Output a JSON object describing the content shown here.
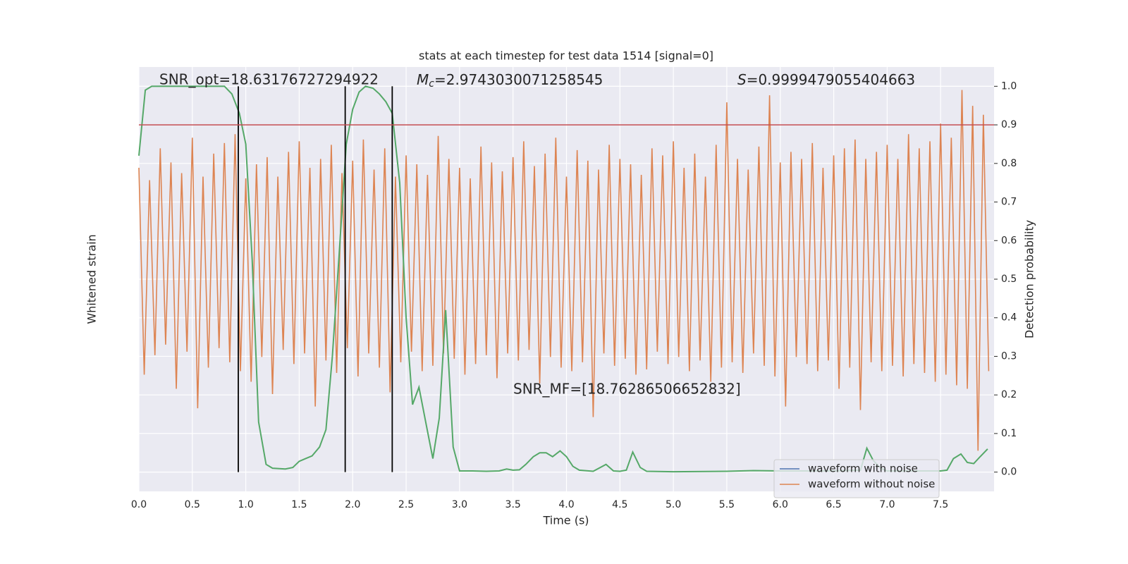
{
  "chart_data": {
    "type": "line",
    "title": "stats at each timestep for test data 1514 [signal=0]",
    "xlabel": "Time (s)",
    "ylabel": "Whitened strain",
    "y2label": "Detection probability",
    "grid": true,
    "legend": "lower right",
    "xlim": [
      0,
      8.0
    ],
    "ylim": [
      -1.28,
      1.12
    ],
    "y2lim": [
      -0.05,
      1.05
    ],
    "xticks": [
      {
        "value": 0,
        "label": "0.0"
      },
      {
        "value": 0.5,
        "label": "0.5"
      },
      {
        "value": 1,
        "label": "1.0"
      },
      {
        "value": 1.5,
        "label": "1.5"
      },
      {
        "value": 2,
        "label": "2.0"
      },
      {
        "value": 2.5,
        "label": "2.5"
      },
      {
        "value": 3,
        "label": "3.0"
      },
      {
        "value": 3.5,
        "label": "3.5"
      },
      {
        "value": 4,
        "label": "4.0"
      },
      {
        "value": 4.5,
        "label": "4.5"
      },
      {
        "value": 5,
        "label": "5.0"
      },
      {
        "value": 5.5,
        "label": "5.5"
      },
      {
        "value": 6,
        "label": "6.0"
      },
      {
        "value": 6.5,
        "label": "6.5"
      },
      {
        "value": 7,
        "label": "7.0"
      },
      {
        "value": 7.5,
        "label": "7.5"
      }
    ],
    "y2ticks": [
      {
        "value": 0,
        "label": "0.0"
      },
      {
        "value": 0.1,
        "label": "0.1"
      },
      {
        "value": 0.2,
        "label": "0.2"
      },
      {
        "value": 0.3,
        "label": "0.3"
      },
      {
        "value": 0.4,
        "label": "0.4"
      },
      {
        "value": 0.5,
        "label": "0.5"
      },
      {
        "value": 0.6,
        "label": "0.6"
      },
      {
        "value": 0.7,
        "label": "0.7"
      },
      {
        "value": 0.8,
        "label": "0.8"
      },
      {
        "value": 0.9,
        "label": "0.9"
      },
      {
        "value": 1,
        "label": "1.0"
      }
    ],
    "series": [
      {
        "name": "waveform with noise",
        "color": "#4c72b0"
      },
      {
        "name": "waveform without noise",
        "color": "#dd8452",
        "x": [
          0,
          0.05,
          0.1,
          0.15,
          0.2,
          0.25,
          0.3,
          0.35,
          0.4,
          0.45,
          0.5,
          0.55,
          0.6,
          0.65,
          0.7,
          0.75,
          0.8,
          0.85,
          0.9,
          0.95,
          1,
          1.05,
          1.1,
          1.15,
          1.2,
          1.25,
          1.3,
          1.35,
          1.4,
          1.45,
          1.5,
          1.55,
          1.6,
          1.65,
          1.7,
          1.75,
          1.8,
          1.85,
          1.9,
          1.95,
          2,
          2.05,
          2.1,
          2.15,
          2.2,
          2.25,
          2.3,
          2.35,
          2.4,
          2.45,
          2.5,
          2.55,
          2.6,
          2.65,
          2.7,
          2.75,
          2.8,
          2.85,
          2.9,
          2.95,
          3,
          3.05,
          3.1,
          3.15,
          3.2,
          3.25,
          3.3,
          3.35,
          3.4,
          3.45,
          3.5,
          3.55,
          3.6,
          3.65,
          3.7,
          3.75,
          3.8,
          3.85,
          3.9,
          3.95,
          4,
          4.05,
          4.1,
          4.15,
          4.2,
          4.25,
          4.3,
          4.35,
          4.4,
          4.45,
          4.5,
          4.55,
          4.6,
          4.65,
          4.7,
          4.75,
          4.8,
          4.85,
          4.9,
          4.95,
          5,
          5.05,
          5.1,
          5.15,
          5.2,
          5.25,
          5.3,
          5.35,
          5.4,
          5.45,
          5.5,
          5.55,
          5.6,
          5.65,
          5.7,
          5.75,
          5.8,
          5.85,
          5.9,
          5.95,
          6,
          6.05,
          6.1,
          6.15,
          6.2,
          6.25,
          6.3,
          6.35,
          6.4,
          6.45,
          6.5,
          6.55,
          6.6,
          6.65,
          6.7,
          6.75,
          6.8,
          6.85,
          6.9,
          6.95,
          7,
          7.05,
          7.1,
          7.15,
          7.2,
          7.25,
          7.3,
          7.35,
          7.4,
          7.45,
          7.5,
          7.55,
          7.6,
          7.65,
          7.7,
          7.75,
          7.8,
          7.85,
          7.9,
          7.95
        ],
        "values": [
          0.55,
          -0.62,
          0.48,
          -0.51,
          0.66,
          -0.45,
          0.58,
          -0.7,
          0.52,
          -0.49,
          0.72,
          -0.81,
          0.5,
          -0.58,
          0.63,
          -0.47,
          0.69,
          -0.55,
          0.74,
          -0.6,
          0.49,
          -0.66,
          0.57,
          -0.52,
          0.61,
          -0.73,
          0.5,
          -0.48,
          0.64,
          -0.56,
          0.7,
          -0.5,
          0.55,
          -0.8,
          0.6,
          -0.54,
          0.68,
          -0.61,
          0.52,
          -0.47,
          0.59,
          -0.63,
          0.71,
          -0.5,
          0.54,
          -0.58,
          0.66,
          -0.72,
          0.5,
          -0.55,
          0.62,
          -0.49,
          0.57,
          -0.6,
          0.51,
          -0.57,
          0.73,
          -0.5,
          0.6,
          -0.53,
          0.55,
          -0.62,
          0.49,
          -0.56,
          0.67,
          -0.51,
          0.58,
          -0.64,
          0.53,
          -0.5,
          0.61,
          -0.54,
          0.7,
          -0.48,
          0.56,
          -0.67,
          0.63,
          -0.52,
          0.72,
          -0.58,
          0.5,
          -0.6,
          0.65,
          -0.55,
          0.59,
          -0.86,
          0.54,
          -0.5,
          0.68,
          -0.57,
          0.6,
          -0.53,
          0.57,
          -0.62,
          0.51,
          -0.59,
          0.66,
          -0.49,
          0.62,
          -0.56,
          0.7,
          -0.52,
          0.55,
          -0.6,
          0.63,
          -0.54,
          0.5,
          -0.66,
          0.68,
          -0.58,
          0.92,
          -0.55,
          0.6,
          -0.61,
          0.54,
          -0.5,
          0.67,
          -0.57,
          0.96,
          -0.63,
          0.58,
          -0.8,
          0.64,
          -0.52,
          0.6,
          -0.56,
          0.69,
          -0.6,
          0.55,
          -0.54,
          0.62,
          -0.7,
          0.66,
          -0.58,
          0.71,
          -0.82,
          0.6,
          -0.55,
          0.64,
          -0.6,
          0.68,
          -0.57,
          0.6,
          -0.63,
          0.74,
          -0.56,
          0.66,
          -0.61,
          0.7,
          -0.66,
          0.8,
          -0.62,
          0.72,
          -0.68,
          0.99,
          -0.7,
          0.9,
          -1.05,
          0.85,
          -0.6
        ]
      },
      {
        "color": "#55a868",
        "axis": "y2",
        "x": [
          0,
          0.06,
          0.12,
          0.5,
          0.8,
          0.87,
          0.94,
          1,
          1.06,
          1.12,
          1.19,
          1.25,
          1.37,
          1.44,
          1.5,
          1.56,
          1.62,
          1.69,
          1.75,
          1.81,
          1.87,
          1.94,
          2,
          2.06,
          2.12,
          2.19,
          2.25,
          2.31,
          2.37,
          2.44,
          2.5,
          2.56,
          2.62,
          2.69,
          2.75,
          2.81,
          2.87,
          2.94,
          3,
          3.12,
          3.25,
          3.37,
          3.44,
          3.5,
          3.56,
          3.62,
          3.69,
          3.75,
          3.81,
          3.87,
          3.94,
          4,
          4.06,
          4.12,
          4.25,
          4.37,
          4.44,
          4.5,
          4.56,
          4.62,
          4.69,
          4.75,
          5,
          5.5,
          5.75,
          6,
          6.5,
          6.75,
          6.81,
          6.87,
          6.94,
          7,
          7.5,
          7.56,
          7.62,
          7.69,
          7.75,
          7.81,
          7.87,
          7.94
        ],
        "values": [
          0.82,
          0.99,
          1,
          1,
          1,
          0.98,
          0.93,
          0.85,
          0.55,
          0.13,
          0.02,
          0.01,
          0.008,
          0.012,
          0.028,
          0.035,
          0.042,
          0.065,
          0.11,
          0.3,
          0.55,
          0.85,
          0.94,
          0.985,
          1,
          0.995,
          0.98,
          0.96,
          0.93,
          0.75,
          0.4,
          0.175,
          0.22,
          0.12,
          0.035,
          0.14,
          0.42,
          0.065,
          0.003,
          0.003,
          0.002,
          0.003,
          0.008,
          0.005,
          0.006,
          0.02,
          0.04,
          0.05,
          0.05,
          0.04,
          0.055,
          0.04,
          0.015,
          0.005,
          0.002,
          0.02,
          0.003,
          0.002,
          0.005,
          0.052,
          0.012,
          0.002,
          0.001,
          0.002,
          0.004,
          0.003,
          0.003,
          0.005,
          0.062,
          0.03,
          0.01,
          0.003,
          0.003,
          0.005,
          0.035,
          0.047,
          0.025,
          0.022,
          0.04,
          0.06
        ]
      }
    ],
    "vlines": {
      "color": "#000000",
      "x": [
        0.93,
        1.93,
        2.37
      ]
    },
    "hline": {
      "color": "#c44e52",
      "axis": "y2",
      "value": 0.9
    },
    "annotations": {
      "snr_opt": "SNR_opt=18.63176727294922",
      "chirp_mass": {
        "symbol": "M",
        "subscript": "c",
        "text": "=2.9743030071258545"
      },
      "score": {
        "symbol": "S",
        "text": "=0.9999479055404663"
      },
      "snr_mf": "SNR_MF=[18.76286506652832]"
    }
  }
}
